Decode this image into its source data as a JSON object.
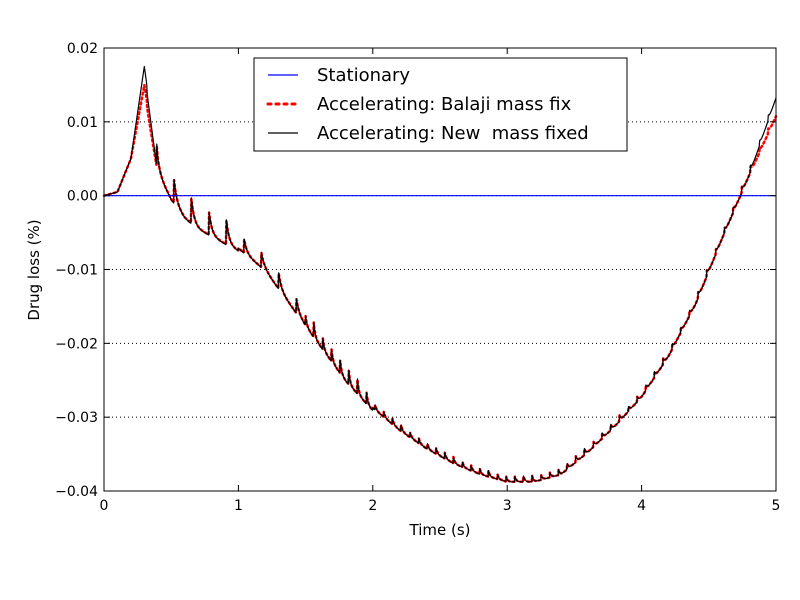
{
  "chart_data": {
    "type": "line",
    "xlabel": "Time (s)",
    "ylabel": "Drug loss (%)",
    "xlim": [
      0,
      5
    ],
    "ylim": [
      -0.04,
      0.02
    ],
    "xticks": [
      0,
      1,
      2,
      3,
      4,
      5
    ],
    "xtick_labels": [
      "0",
      "1",
      "2",
      "3",
      "4",
      "5"
    ],
    "yticks": [
      0.02,
      0.01,
      0.0,
      -0.01,
      -0.02,
      -0.03,
      -0.04
    ],
    "ytick_labels": [
      "0.02",
      "0.01",
      "0.00",
      "−0.01",
      "−0.02",
      "−0.03",
      "−0.04"
    ],
    "grid": "horizontal dotted",
    "legend_position": "top-center",
    "series": [
      {
        "name": "Stationary",
        "color": "#0000ff",
        "style": "solid",
        "x": [
          0,
          5
        ],
        "y": [
          0,
          0
        ]
      },
      {
        "name": "Accelerating: Balaji mass fix",
        "color": "#ff0000",
        "style": "dotted",
        "x": [
          0,
          0.1,
          0.2,
          0.3,
          0.4,
          0.5,
          0.6,
          0.7,
          0.8,
          0.9,
          1.0,
          1.2,
          1.4,
          1.6,
          1.8,
          2.0,
          2.2,
          2.4,
          2.6,
          2.8,
          3.0,
          3.2,
          3.4,
          3.6,
          3.8,
          4.0,
          4.2,
          4.4,
          4.6,
          4.8,
          5.0
        ],
        "y": [
          0,
          0.0005,
          0.005,
          0.015,
          0.004,
          0.0005,
          -0.002,
          -0.0035,
          -0.0045,
          -0.0055,
          -0.0065,
          -0.0095,
          -0.0145,
          -0.0195,
          -0.0245,
          -0.0285,
          -0.0315,
          -0.034,
          -0.036,
          -0.0375,
          -0.0385,
          -0.0385,
          -0.0375,
          -0.0345,
          -0.031,
          -0.027,
          -0.0215,
          -0.0145,
          -0.0055,
          0.003,
          0.011
        ]
      },
      {
        "name": "Accelerating: New  mass fixed",
        "color": "#000000",
        "style": "solid",
        "x": [
          0,
          0.1,
          0.2,
          0.3,
          0.4,
          0.5,
          0.6,
          0.7,
          0.8,
          0.9,
          1.0,
          1.2,
          1.4,
          1.6,
          1.8,
          2.0,
          2.2,
          2.4,
          2.6,
          2.8,
          3.0,
          3.2,
          3.4,
          3.6,
          3.8,
          4.0,
          4.2,
          4.4,
          4.6,
          4.8,
          5.0
        ],
        "y": [
          0,
          0.0005,
          0.005,
          0.0175,
          0.004,
          0.0005,
          -0.002,
          -0.0035,
          -0.0045,
          -0.0055,
          -0.0065,
          -0.0095,
          -0.0145,
          -0.0195,
          -0.0245,
          -0.0285,
          -0.0315,
          -0.034,
          -0.036,
          -0.0375,
          -0.0385,
          -0.0385,
          -0.0375,
          -0.0345,
          -0.031,
          -0.027,
          -0.0215,
          -0.0145,
          -0.0055,
          0.003,
          0.0135
        ]
      }
    ]
  }
}
